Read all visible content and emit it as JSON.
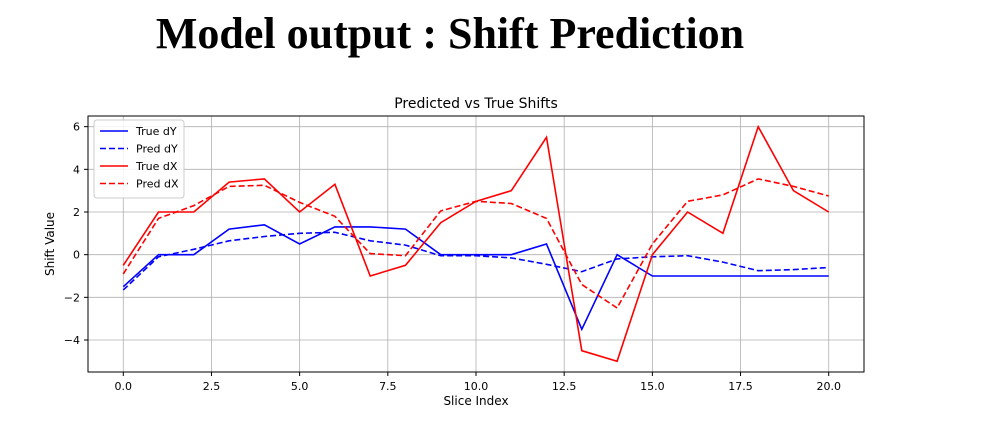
{
  "header": {
    "title": "Model output : Shift Prediction"
  },
  "chart_data": {
    "type": "line",
    "title": "Predicted vs True Shifts",
    "xlabel": "Slice Index",
    "ylabel": "Shift Value",
    "xlim": [
      -1,
      21
    ],
    "ylim": [
      -5.5,
      6.5
    ],
    "xticks": [
      0,
      2.5,
      5,
      7.5,
      10,
      12.5,
      15,
      17.5,
      20
    ],
    "xtick_labels": [
      "0.0",
      "2.5",
      "5.0",
      "7.5",
      "10.0",
      "12.5",
      "15.0",
      "17.5",
      "20.0"
    ],
    "yticks": [
      -4,
      -2,
      0,
      2,
      4,
      6
    ],
    "ytick_labels": [
      "−4",
      "−2",
      "0",
      "2",
      "4",
      "6"
    ],
    "grid": true,
    "legend_position": "top-left",
    "x": [
      0,
      1,
      2,
      3,
      4,
      5,
      6,
      7,
      8,
      9,
      10,
      11,
      12,
      13,
      14,
      15,
      16,
      17,
      18,
      19,
      20
    ],
    "series": [
      {
        "name": "True dY",
        "color": "#0000ff",
        "dash": "solid",
        "values": [
          -1.5,
          0,
          0,
          1.2,
          1.4,
          0.5,
          1.3,
          1.3,
          1.2,
          0,
          0,
          0,
          0.5,
          -3.5,
          0,
          -1,
          -1,
          -1,
          -1,
          -1,
          -1
        ]
      },
      {
        "name": "Pred dY",
        "color": "#0000ff",
        "dash": "dashed",
        "values": [
          -1.65,
          -0.1,
          0.25,
          0.65,
          0.85,
          1.0,
          1.05,
          0.65,
          0.45,
          -0.05,
          -0.05,
          -0.15,
          -0.45,
          -0.8,
          -0.2,
          -0.1,
          -0.05,
          -0.35,
          -0.75,
          -0.7,
          -0.6
        ]
      },
      {
        "name": "True dX",
        "color": "#ff0000",
        "dash": "solid",
        "values": [
          -0.5,
          2,
          2,
          3.4,
          3.55,
          2,
          3.3,
          -1,
          -0.5,
          1.5,
          2.5,
          3,
          5.5,
          -4.5,
          -5,
          0,
          2,
          1,
          6,
          3,
          2
        ]
      },
      {
        "name": "Pred dX",
        "color": "#ff0000",
        "dash": "dashed",
        "values": [
          -0.9,
          1.7,
          2.3,
          3.2,
          3.25,
          2.45,
          1.8,
          0.05,
          -0.05,
          2.05,
          2.5,
          2.4,
          1.7,
          -1.4,
          -2.5,
          0.5,
          2.5,
          2.8,
          3.55,
          3.2,
          2.75
        ]
      }
    ]
  }
}
